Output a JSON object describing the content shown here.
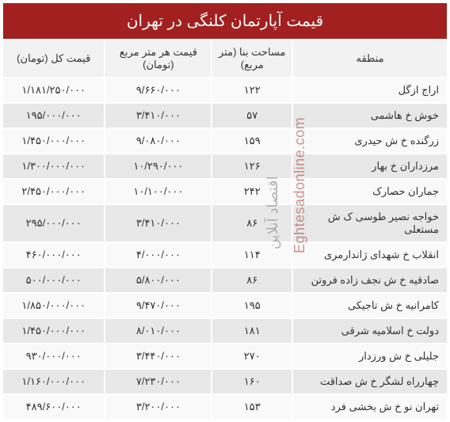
{
  "title": "قیمت آپارتمان کلنگی در تهران",
  "columns": {
    "region": "منطقه",
    "area": "مساحت بنا (متر مربع)",
    "ppsm": "قیمت هر متر مربع (تومان)",
    "total": "قیمت کل (تومان)"
  },
  "rows": [
    {
      "region": "اراج ازگل",
      "area": "۱۲۲",
      "ppsm": "۹/۶۶۰/۰۰۰",
      "total": "۱/۱۸۱/۲۵۰/۰۰۰"
    },
    {
      "region": "خوش خ هاشمی",
      "area": "۵۷",
      "ppsm": "۳/۴۱۰/۰۰۰",
      "total": "۱۹۵/۰۰۰/۰۰۰"
    },
    {
      "region": "زرگنده خ ش حیدری",
      "area": "۱۵۹",
      "ppsm": "۹/۰۸۰/۰۰۰",
      "total": "۱/۴۵۰/۰۰۰/۰۰۰"
    },
    {
      "region": "مرزداران خ بهار",
      "area": "۱۲۶",
      "ppsm": "۱۰/۲۹۰/۰۰۰",
      "total": "۱/۳۰۰/۰۰۰/۰۰۰"
    },
    {
      "region": "جماران حصارک",
      "area": "۲۴۲",
      "ppsm": "۱۰/۱۰۰/۰۰۰",
      "total": "۲/۴۵۰/۰۰۰/۰۰۰"
    },
    {
      "region": "خواجه نصیر طوسی ک ش مستعلی",
      "area": "۸۶",
      "ppsm": "۳/۴۱۰/۰۰۰",
      "total": "۲۹۵/۰۰۰/۰۰۰"
    },
    {
      "region": "انقلاب خ شهدای ژاندارمری",
      "area": "۱۱۴",
      "ppsm": "۴/۰۰۰/۰۰۰",
      "total": "۴۶۰/۰۰۰/۰۰۰"
    },
    {
      "region": "صادقیه خ ش نجف زاده فروتن",
      "area": "۸۶",
      "ppsm": "۵/۸۰۰/۰۰۰",
      "total": "۵۰۰/۰۰۰/۰۰۰"
    },
    {
      "region": "کامرانیه خ ش تاجیکی",
      "area": "۱۹۵",
      "ppsm": "۹/۴۷۰/۰۰۰",
      "total": "۱/۸۵۰/۰۰۰/۰۰۰"
    },
    {
      "region": "دولت خ اسلامیه شرقی",
      "area": "۱۸۱",
      "ppsm": "۸/۰۱۰/۰۰۰",
      "total": "۱/۴۵۰/۰۰۰/۰۰۰"
    },
    {
      "region": "جلیلی خ ش ورزدار",
      "area": "۲۷۰",
      "ppsm": "۳/۴۴۰/۰۰۰",
      "total": "۹۳۰/۰۰۰/۰۰۰"
    },
    {
      "region": "چهارراه لشگر خ ش صداقت",
      "area": "۱۶۰",
      "ppsm": "۷/۲۳۰/۰۰۰",
      "total": "۱/۱۶۰/۰۰۰/۰۰۰"
    },
    {
      "region": "تهران نو خ ش بخشی فرد",
      "area": "۱۵۳",
      "ppsm": "۳/۲۰۰/۰۰۰",
      "total": "۴۸۹/۶۰۰/۰۰۰"
    }
  ],
  "watermark_en": "Eghtesadonline.com",
  "watermark_fa": "اقتصاد آنلاین",
  "colors": {
    "title_bg": "#a32020",
    "title_fg": "#ffffff",
    "header_bg": "#f2f2f2",
    "row_even_bg": "#f9f9f9",
    "row_odd_bg": "#e8e8e8",
    "text": "#333333"
  }
}
